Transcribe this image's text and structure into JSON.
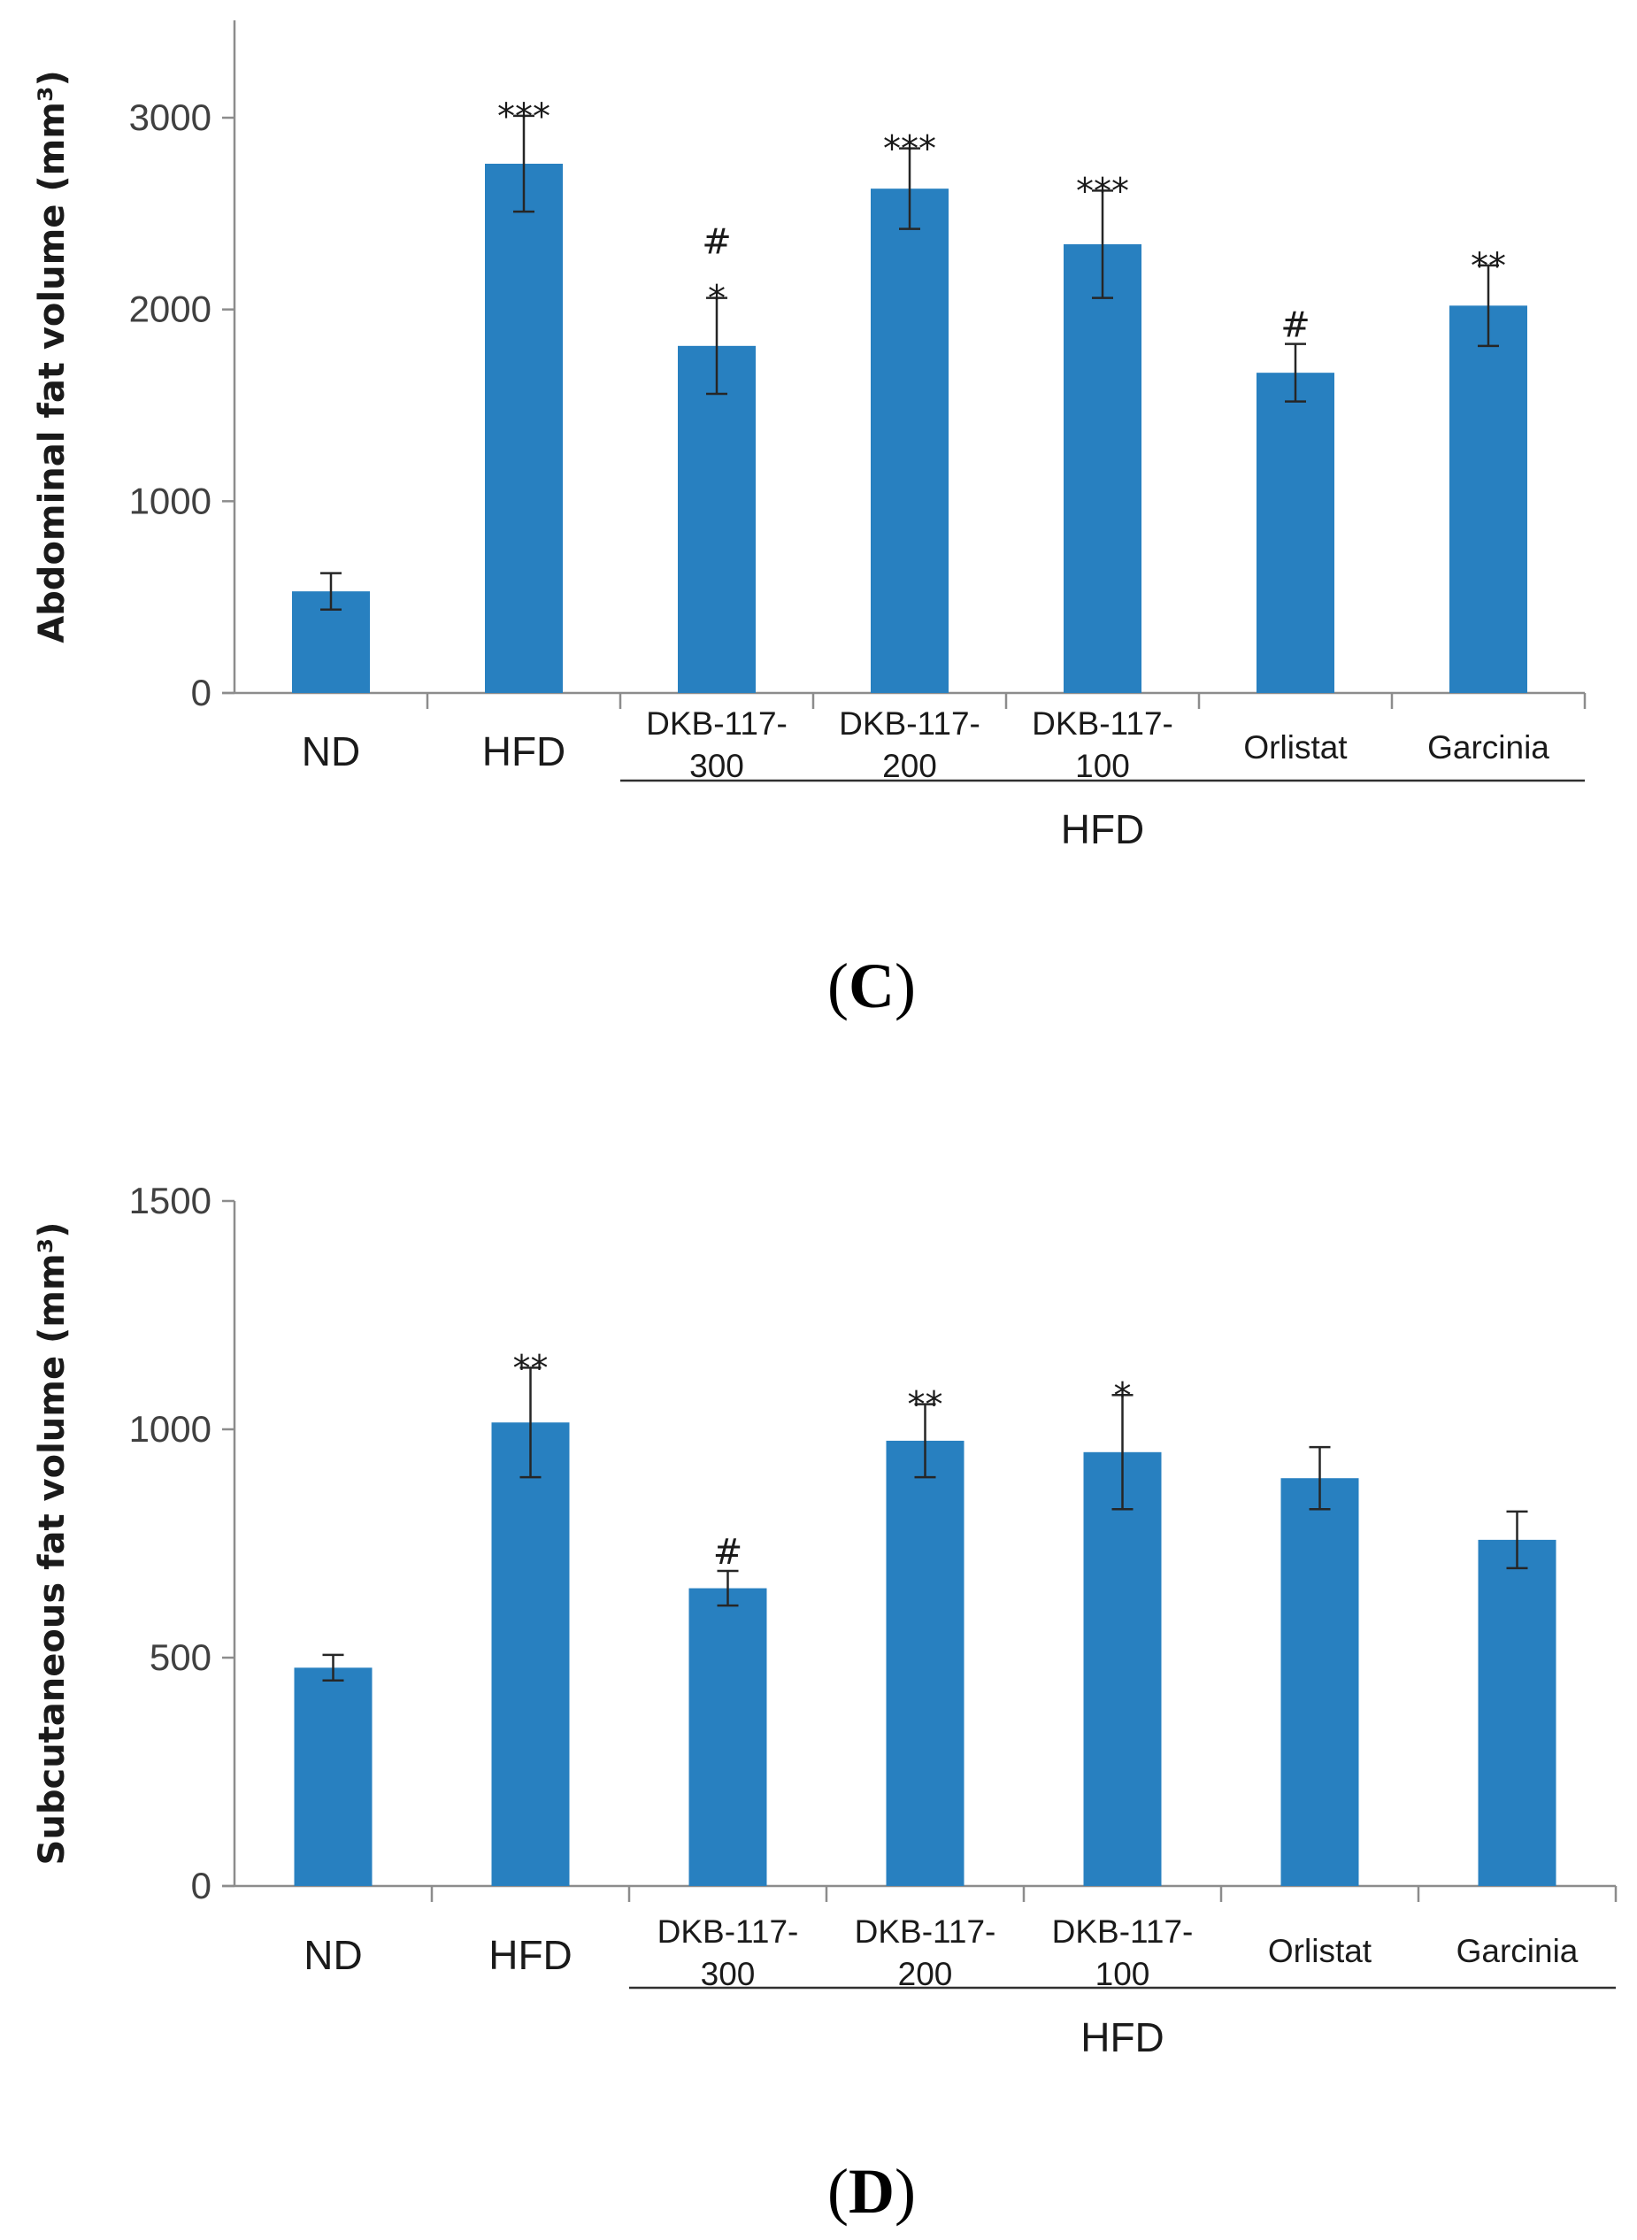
{
  "colors": {
    "bar": "#2880c0",
    "axis": "#8c8c8c",
    "text": "#1a1a1a"
  },
  "chart_data": [
    {
      "type": "bar",
      "panel_label_open": "(",
      "panel_label_letter": "C",
      "panel_label_close": ")",
      "ylabel": "Abdominal fat volume (mm³)",
      "ylim": [
        0,
        3500
      ],
      "yticks": [
        0,
        1000,
        2000,
        3000
      ],
      "categories": [
        "ND",
        "HFD",
        "DKB-117-300",
        "DKB-117-200",
        "DKB-117-100",
        "Orlistat",
        "Garcinia"
      ],
      "category_lines": [
        [
          "ND"
        ],
        [
          "HFD"
        ],
        [
          "DKB-117-",
          "300"
        ],
        [
          "DKB-117-",
          "200"
        ],
        [
          "DKB-117-",
          "100"
        ],
        [
          "Orlistat"
        ],
        [
          "Garcinia"
        ]
      ],
      "values": [
        530,
        2760,
        1810,
        2630,
        2340,
        1670,
        2020
      ],
      "errors": [
        95,
        250,
        250,
        210,
        280,
        150,
        210
      ],
      "annotations": [
        [
          ""
        ],
        [
          "***"
        ],
        [
          "#",
          "*"
        ],
        [
          "***"
        ],
        [
          "***"
        ],
        [
          "#"
        ],
        [
          "**"
        ]
      ],
      "group_label": "HFD",
      "group_span": [
        2,
        6
      ]
    },
    {
      "type": "bar",
      "panel_label_open": "(",
      "panel_label_letter": "D",
      "panel_label_close": ")",
      "ylabel": "Subcutaneous fat volume (mm³)",
      "ylim": [
        0,
        1500
      ],
      "yticks": [
        0,
        500,
        1000,
        1500
      ],
      "categories": [
        "ND",
        "HFD",
        "DKB-117-300",
        "DKB-117-200",
        "DKB-117-100",
        "Orlistat",
        "Garcinia"
      ],
      "category_lines": [
        [
          "ND"
        ],
        [
          "HFD"
        ],
        [
          "DKB-117-",
          "300"
        ],
        [
          "DKB-117-",
          "200"
        ],
        [
          "DKB-117-",
          "100"
        ],
        [
          "Orlistat"
        ],
        [
          "Garcinia"
        ]
      ],
      "values": [
        478,
        1015,
        652,
        975,
        950,
        893,
        758
      ],
      "errors": [
        28,
        120,
        38,
        80,
        125,
        68,
        62
      ],
      "annotations": [
        [
          ""
        ],
        [
          "**"
        ],
        [
          "#"
        ],
        [
          "**"
        ],
        [
          "*"
        ],
        [
          ""
        ],
        [
          ""
        ]
      ],
      "group_label": "HFD",
      "group_span": [
        2,
        6
      ]
    }
  ]
}
